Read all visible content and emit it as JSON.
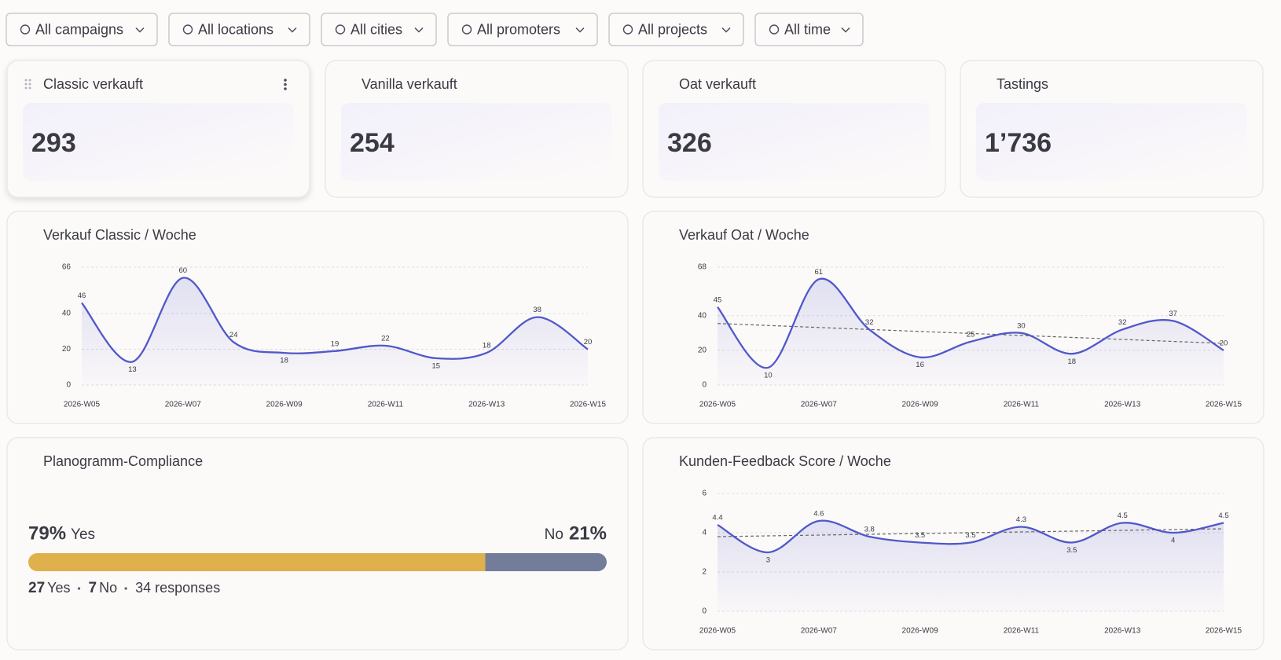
{
  "filters": [
    "All campaigns",
    "All locations",
    "All cities",
    "All promoters",
    "All projects",
    "All time"
  ],
  "kpis": [
    {
      "title": "Classic verkauft",
      "value": "293"
    },
    {
      "title": "Vanilla verkauft",
      "value": "254"
    },
    {
      "title": "Oat verkauft",
      "value": "326"
    },
    {
      "title": "Tastings",
      "value": "1’736"
    }
  ],
  "chart_data": [
    {
      "type": "line",
      "title": "Verkauf Classic / Woche",
      "color": "#5058c9",
      "categories": [
        "2026-W05",
        null,
        "2026-W07",
        null,
        "2026-W09",
        null,
        "2026-W11",
        null,
        "2026-W13",
        null,
        "2026-W15"
      ],
      "values": [
        46,
        13,
        60,
        24,
        18,
        19,
        22,
        15,
        18,
        38,
        20
      ],
      "ylim": [
        0,
        66
      ],
      "yticks": [
        0,
        20,
        40,
        66
      ],
      "grid": true
    },
    {
      "type": "line",
      "title": "Verkauf Oat / Woche",
      "color": "#5058c9",
      "categories": [
        "2026-W05",
        null,
        "2026-W07",
        null,
        "2026-W09",
        null,
        "2026-W11",
        null,
        "2026-W13",
        null,
        "2026-W15"
      ],
      "values": [
        45,
        10,
        61,
        32,
        16,
        25,
        30,
        18,
        32,
        37,
        20
      ],
      "trend": [
        35.5,
        24
      ],
      "ylim": [
        0,
        68
      ],
      "yticks": [
        0,
        20,
        40,
        68
      ],
      "grid": true
    },
    {
      "type": "line",
      "title": "Kunden-Feedback Score / Woche",
      "color": "#5058c9",
      "categories": [
        "2026-W05",
        null,
        "2026-W07",
        null,
        "2026-W09",
        null,
        "2026-W11",
        null,
        "2026-W13",
        null,
        "2026-W15"
      ],
      "values": [
        4.4,
        3,
        4.6,
        3.8,
        3.5,
        3.5,
        4.3,
        3.5,
        4.5,
        4,
        4.5
      ],
      "trend": [
        3.8,
        4.2
      ],
      "ylim": [
        0,
        6
      ],
      "yticks": [
        0,
        2,
        4,
        6
      ],
      "grid": true
    }
  ],
  "compliance": {
    "title": "Planogramm-Compliance",
    "categories": [
      "Yes",
      "No"
    ],
    "values": [
      79,
      21
    ],
    "value_labels": [
      "79%",
      "21%"
    ],
    "colors": [
      "#e0b04c",
      "#737d99"
    ],
    "counts": [
      27,
      7
    ],
    "responses": 34,
    "responses_label": "responses"
  }
}
